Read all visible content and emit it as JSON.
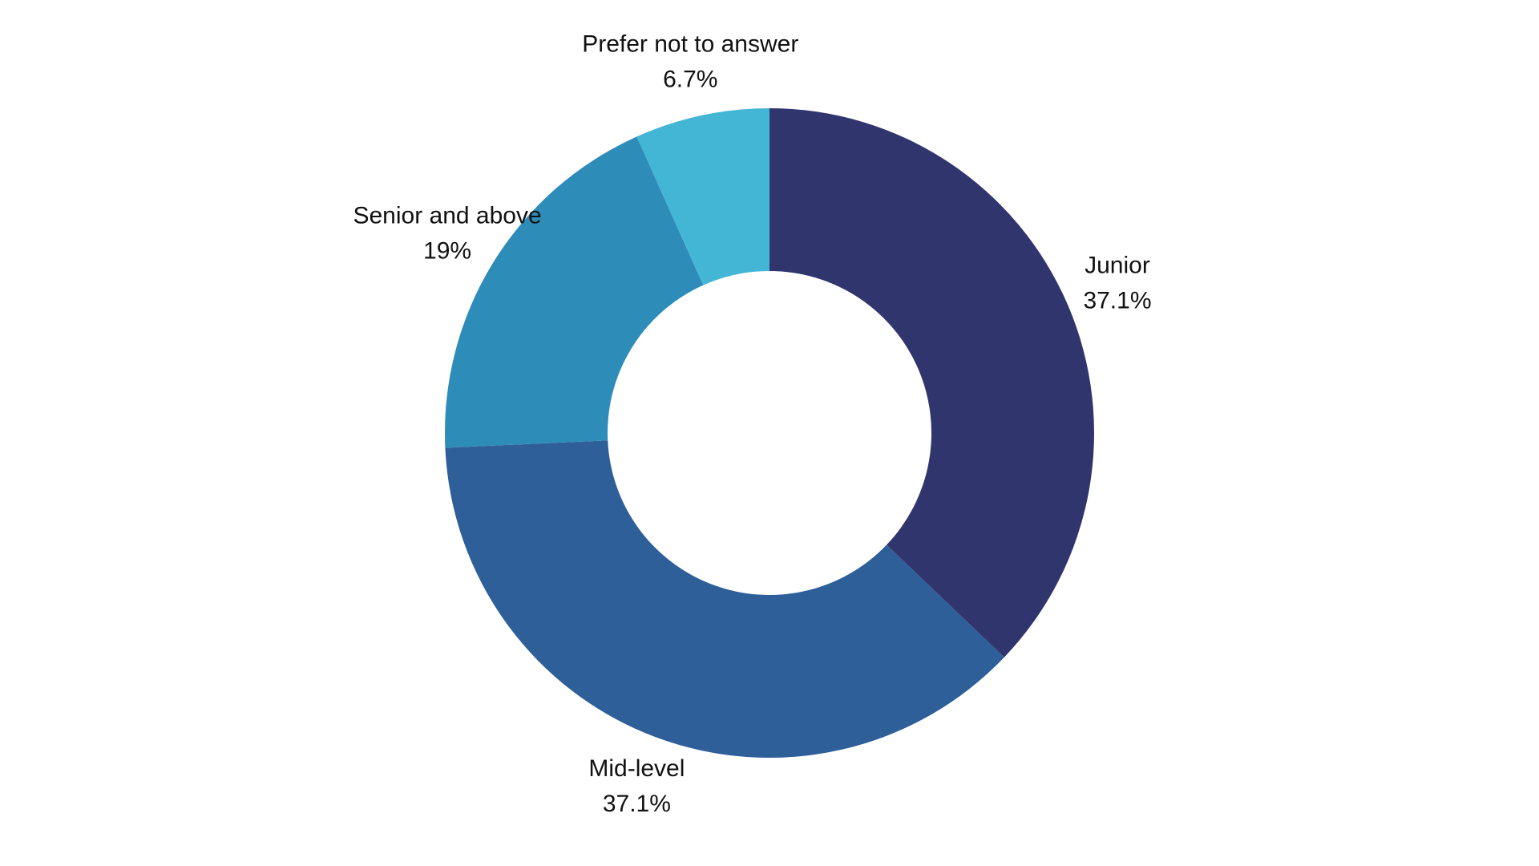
{
  "chart_data": {
    "type": "donut",
    "categories": [
      "Junior",
      "Mid-level",
      "Senior and above",
      "Prefer not to answer"
    ],
    "values": [
      37.1,
      37.1,
      19,
      6.7
    ],
    "value_labels": [
      "37.1%",
      "37.1%",
      "19%",
      "6.7%"
    ],
    "colors": [
      "#31356e",
      "#2f5f98",
      "#2e8cb9",
      "#43b6d6"
    ]
  }
}
